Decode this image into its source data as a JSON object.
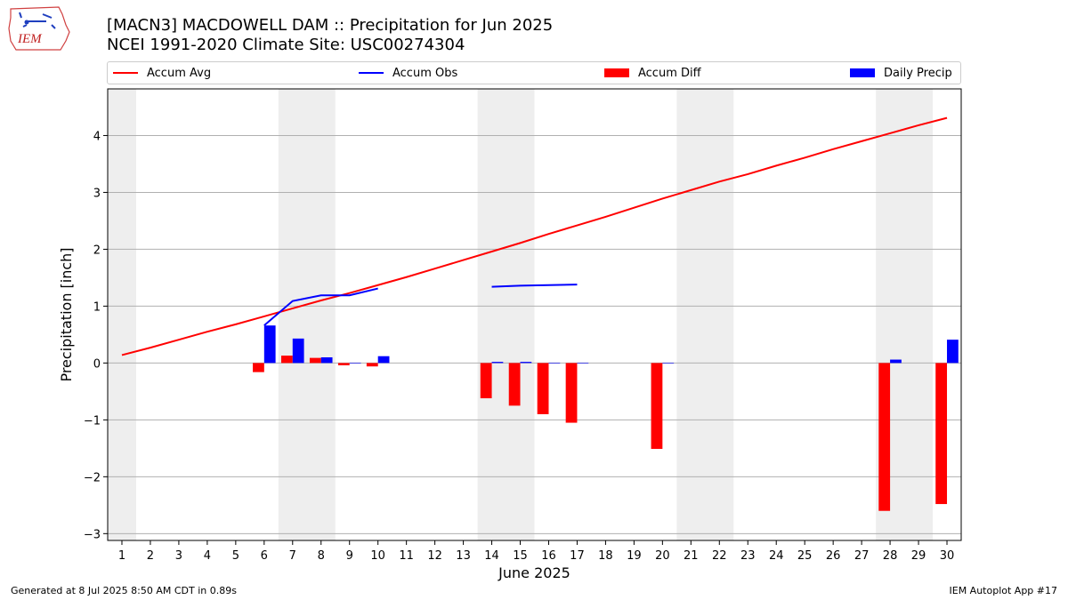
{
  "header": {
    "title_line1": "[MACN3] MACDOWELL DAM :: Precipitation for Jun 2025",
    "title_line2": "NCEI 1991-2020 Climate Site: USC00274304",
    "logo_text": "IEM"
  },
  "footer": {
    "generated": "Generated at 8 Jul 2025 8:50 AM CDT in 0.89s",
    "app": "IEM Autoplot App #17"
  },
  "chart_data": {
    "type": "bar",
    "xlabel": "June 2025",
    "ylabel": "Precipitation [inch]",
    "ylim": [
      -3.12,
      4.82
    ],
    "yticks": [
      -3,
      -2,
      -1,
      0,
      1,
      2,
      3,
      4
    ],
    "ytick_labels": [
      "−3",
      "−2",
      "−1",
      "0",
      "1",
      "2",
      "3",
      "4"
    ],
    "x": [
      1,
      2,
      3,
      4,
      5,
      6,
      7,
      8,
      9,
      10,
      11,
      12,
      13,
      14,
      15,
      16,
      17,
      18,
      19,
      20,
      21,
      22,
      23,
      24,
      25,
      26,
      27,
      28,
      29,
      30
    ],
    "grid": "horizontal",
    "legend_position": "top",
    "weekend_shading": [
      [
        1,
        1
      ],
      [
        7,
        8
      ],
      [
        14,
        15
      ],
      [
        21,
        22
      ],
      [
        28,
        29
      ]
    ],
    "colors": {
      "accum_avg": "#ff0000",
      "accum_obs": "#0000ff",
      "accum_diff": "#ff0000",
      "daily_precip": "#0000ff",
      "shading": "#eeeeee",
      "grid": "#b0b0b0"
    },
    "series": [
      {
        "name": "Accum Avg",
        "kind": "line",
        "values": [
          0.14,
          0.27,
          0.41,
          0.55,
          0.68,
          0.82,
          0.96,
          1.1,
          1.23,
          1.37,
          1.51,
          1.66,
          1.81,
          1.96,
          2.11,
          2.27,
          2.42,
          2.57,
          2.73,
          2.89,
          3.04,
          3.19,
          3.32,
          3.47,
          3.61,
          3.76,
          3.9,
          4.04,
          4.18,
          4.31
        ]
      },
      {
        "name": "Accum Obs",
        "kind": "line",
        "values": [
          null,
          null,
          null,
          null,
          null,
          0.66,
          1.09,
          1.19,
          1.19,
          1.31,
          null,
          null,
          null,
          1.34,
          1.36,
          1.37,
          1.38,
          null,
          null,
          null,
          null,
          null,
          null,
          null,
          null,
          null,
          null,
          null,
          null,
          null
        ]
      },
      {
        "name": "Accum Diff",
        "kind": "bar",
        "values": [
          null,
          null,
          null,
          null,
          null,
          -0.16,
          0.13,
          0.09,
          -0.04,
          -0.06,
          null,
          null,
          null,
          -0.62,
          -0.75,
          -0.9,
          -1.05,
          null,
          null,
          -1.51,
          null,
          null,
          null,
          null,
          null,
          null,
          null,
          -2.6,
          null,
          -2.48
        ]
      },
      {
        "name": "Daily Precip",
        "kind": "bar",
        "values": [
          null,
          null,
          null,
          null,
          null,
          0.66,
          0.43,
          0.1,
          0,
          0.12,
          null,
          null,
          null,
          0.02,
          0.02,
          0,
          0,
          null,
          null,
          0,
          null,
          null,
          null,
          null,
          null,
          null,
          null,
          0.06,
          null,
          0.41
        ]
      }
    ]
  }
}
